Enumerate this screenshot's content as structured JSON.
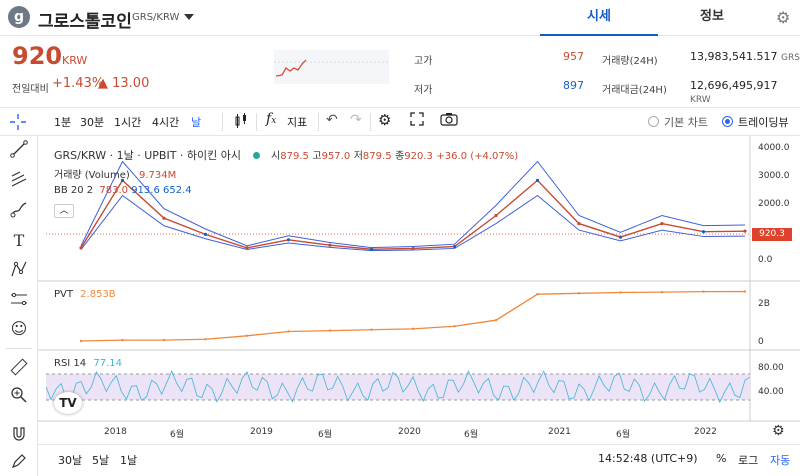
{
  "header": {
    "logo_letter": "g",
    "coin_name": "그로스톨코인",
    "coin_symbol": "GRS/KRW",
    "tabs": [
      "시세",
      "정보"
    ]
  },
  "ticker": {
    "price": "920",
    "price_unit": "KRW",
    "change_label": "전일대비",
    "change_rate": "+1.43%",
    "change_abs": "▲ 13.00",
    "high_label": "고가",
    "high": "957",
    "low_label": "저가",
    "low": "897",
    "volume_label": "거래량(24H)",
    "volume": "13,983,541.517",
    "volume_unit": "GRS",
    "amount_label": "거래대금(24H)",
    "amount": "12,696,495,917",
    "amount_unit": "KRW"
  },
  "toolbar": {
    "intervals": [
      "1분",
      "30분",
      "1시간",
      "4시간",
      "날"
    ],
    "indicator_label": "지표",
    "basic_chart": "기본 차트",
    "trading_view": "트레이딩뷰"
  },
  "chart": {
    "legend_symbol": "GRS/KRW · 1날 · UPBIT · 하이킨 아시",
    "legend_o_label": "시",
    "legend_o": "879.5",
    "legend_h_label": "고",
    "legend_h": "957.0",
    "legend_l_label": "저",
    "legend_l": "879.5",
    "legend_c_label": "종",
    "legend_c": "920.3",
    "legend_change": "+36.0 (+4.07%)",
    "volume_label": "거래량 (Volume)",
    "volume_value": "9.734M",
    "bb_label": "BB 20 2",
    "bb_mid": "783.0",
    "bb_upper": "913.6",
    "bb_lower": "652.4",
    "price_ticks": [
      "4000.0",
      "3000.0",
      "2000.0",
      "1000.0",
      "0.0"
    ],
    "last_price": "920.3",
    "pvt_label": "PVT",
    "pvt_value": "2.853B",
    "pvt_ticks": [
      "2B",
      "0"
    ],
    "rsi_label": "RSI 14",
    "rsi_value": "77.14",
    "rsi_ticks": [
      "80.00",
      "40.00"
    ],
    "x_ticks": [
      "2018",
      "6월",
      "2019",
      "6월",
      "2020",
      "6월",
      "2021",
      "6월",
      "2022"
    ]
  },
  "bottom_bar": {
    "ranges": [
      "30날",
      "5날",
      "1날"
    ],
    "time": "14:52:48 (UTC+9)",
    "percent": "%",
    "log": "로그",
    "auto": "자동"
  },
  "colors": {
    "up": "#c84a31",
    "down": "#1261c4",
    "accent": "#115dcb",
    "pvt": "#f0883e",
    "rsi": "#3fb5d6"
  },
  "chart_data": {
    "type": "line",
    "x": [
      "2017-10",
      "2018-01",
      "2018-02",
      "2018-06",
      "2018-12",
      "2019-01",
      "2019-06",
      "2020-01",
      "2020-06",
      "2021-01",
      "2021-03",
      "2021-04",
      "2021-05",
      "2021-07",
      "2021-09",
      "2022-01",
      "2022-03"
    ],
    "series": [
      {
        "name": "GRS/KRW",
        "values": [
          300,
          2800,
          1400,
          800,
          300,
          600,
          400,
          250,
          280,
          350,
          1500,
          2800,
          1200,
          700,
          1200,
          900,
          920
        ]
      },
      {
        "name": "PVT",
        "values": [
          0,
          0.05,
          0.05,
          0.1,
          0.3,
          0.55,
          0.6,
          0.65,
          0.7,
          0.85,
          1.2,
          2.7,
          2.75,
          2.8,
          2.82,
          2.85,
          2.853
        ]
      }
    ],
    "ylim": [
      0,
      4000
    ]
  }
}
